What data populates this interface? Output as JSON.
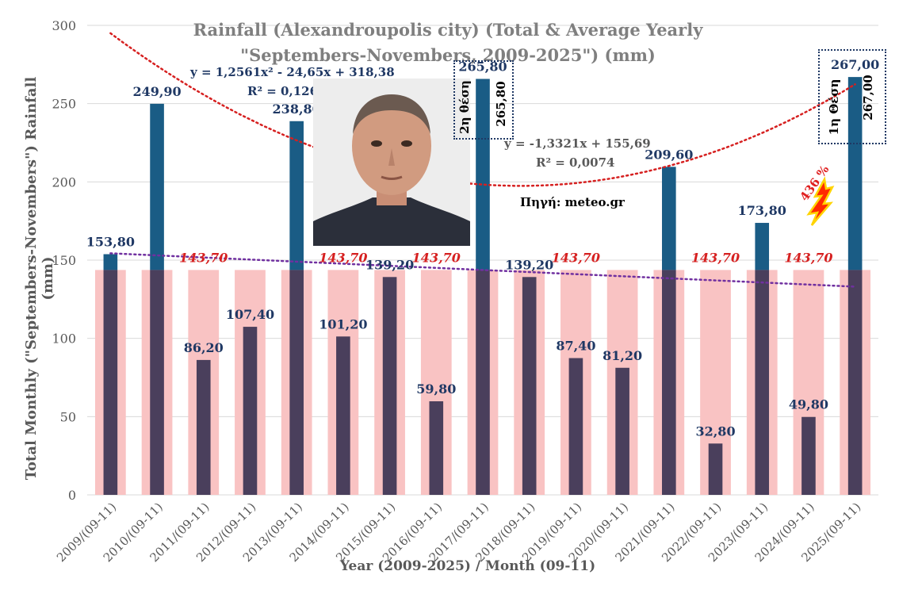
{
  "chart_data": {
    "type": "bar",
    "title": "Rainfall (Alexandroupolis city) (Total & Average Yearly \"Septembers-Novembers, 2009-2025\") (mm)",
    "ylabel": "Total Monthly (\"Septembers-Novembers\") Rainfall (mm)",
    "xlabel": "Year (2009-2025) / Month (09-11)",
    "ylim": [
      0,
      300
    ],
    "yticks": [
      "0",
      "50",
      "100",
      "150",
      "200",
      "250",
      "300"
    ],
    "categories": [
      "2009/(09-11)",
      "2010/(09-11)",
      "2011/(09-11)",
      "2012/(09-11)",
      "2013/(09-11)",
      "2014/(09-11)",
      "2015/(09-11)",
      "2016/(09-11)",
      "2017/(09-11)",
      "2018/(09-11)",
      "2019/(09-11)",
      "2020/(09-11)",
      "2021/(09-11)",
      "2022/(09-11)",
      "2023/(09-11)",
      "2024/(09-11)",
      "2025/(09-11)"
    ],
    "series": [
      {
        "values": [
          153.8,
          249.9,
          86.2,
          107.4,
          238.8,
          101.2,
          139.2,
          59.8,
          265.8,
          139.2,
          87.4,
          81.2,
          209.6,
          32.8,
          173.8,
          49.8,
          267.0
        ],
        "labels": [
          "153,80",
          "249,90",
          "86,20",
          "107,40",
          "238,80",
          "101,20",
          "139,20",
          "59,80",
          "265,80",
          "139,20",
          "87,40",
          "81,20",
          "209,60",
          "32,80",
          "173,80",
          "49,80",
          "267,00"
        ],
        "color_above_average": "#1a5c85",
        "color_below_average": "#4a3f5c"
      },
      {
        "values": [
          143.7,
          143.7,
          143.7,
          143.7,
          143.7,
          143.7,
          143.7,
          143.7,
          143.7,
          143.7,
          143.7,
          143.7,
          143.7,
          143.7,
          143.7,
          143.7,
          143.7
        ],
        "label": "143,70",
        "labeled_indices": [
          2,
          5,
          7,
          10,
          13,
          15
        ],
        "color": "#f9c3c3"
      }
    ],
    "trendlines": [
      {
        "type": "polynomial",
        "equation": "y = 1,2561x² - 24,65x + 318,38",
        "r2": "R² = 0,1263",
        "a": 1.2561,
        "b": -24.65,
        "c": 318.38,
        "color": "#d62020"
      },
      {
        "type": "linear",
        "equation": "y = -1,3321x + 155,69",
        "r2": "R² = 0,0074",
        "a": -1.3321,
        "b": 155.69,
        "color": "#7030a0"
      }
    ],
    "grid": true,
    "legend": "none"
  },
  "source_label": "Πηγή: meteo.gr",
  "ranks": {
    "second": {
      "rank_text": "2η θέση",
      "value_text": "265,80"
    },
    "first": {
      "rank_text": "1η Θέση",
      "value_text": "267,00"
    }
  },
  "percent_note": "436 %",
  "colors": {
    "average_bar": "#f9c3c3",
    "high_bar": "#1a5c85",
    "low_bar": "#4a3f5c",
    "value_label": "#1f3864",
    "average_label": "#d62020",
    "grid": "#d9d9d9"
  },
  "icons": [
    "portrait-photo",
    "lightning-icon"
  ]
}
